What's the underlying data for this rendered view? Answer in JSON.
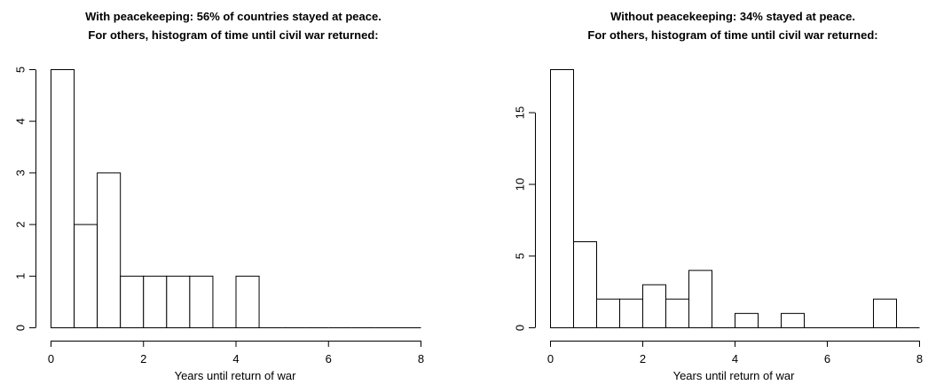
{
  "chart_data": [
    {
      "type": "bar",
      "title": "With peacekeeping:  56% of countries stayed at peace.",
      "subtitle": "For others, histogram of time until civil war returned:",
      "xlabel": "Years until return of war",
      "ylabel": "",
      "bin_width": 0.5,
      "bin_edges": [
        0,
        0.5,
        1,
        1.5,
        2,
        2.5,
        3,
        3.5,
        4,
        4.5,
        5,
        5.5,
        6,
        6.5,
        7,
        7.5,
        8
      ],
      "values": [
        5,
        2,
        3,
        1,
        1,
        1,
        1,
        0,
        1,
        0,
        0,
        0,
        0,
        0,
        0,
        0
      ],
      "xlim": [
        0,
        8
      ],
      "ylim": [
        0,
        5
      ],
      "xticks": [
        0,
        2,
        4,
        6,
        8
      ],
      "yticks": [
        0,
        1,
        2,
        3,
        4,
        5
      ],
      "grid": false
    },
    {
      "type": "bar",
      "title": "Without peacekeeping:  34% stayed at peace.",
      "subtitle": "For others, histogram of time until civil war returned:",
      "xlabel": "Years until return of war",
      "ylabel": "",
      "bin_width": 0.5,
      "bin_edges": [
        0,
        0.5,
        1,
        1.5,
        2,
        2.5,
        3,
        3.5,
        4,
        4.5,
        5,
        5.5,
        6,
        6.5,
        7,
        7.5,
        8
      ],
      "values": [
        18,
        6,
        2,
        2,
        3,
        2,
        4,
        0,
        1,
        0,
        1,
        0,
        0,
        0,
        2,
        0
      ],
      "xlim": [
        0,
        8
      ],
      "ylim": [
        0,
        18
      ],
      "xticks": [
        0,
        2,
        4,
        6,
        8
      ],
      "yticks": [
        0,
        5,
        10,
        15
      ],
      "grid": false
    }
  ]
}
